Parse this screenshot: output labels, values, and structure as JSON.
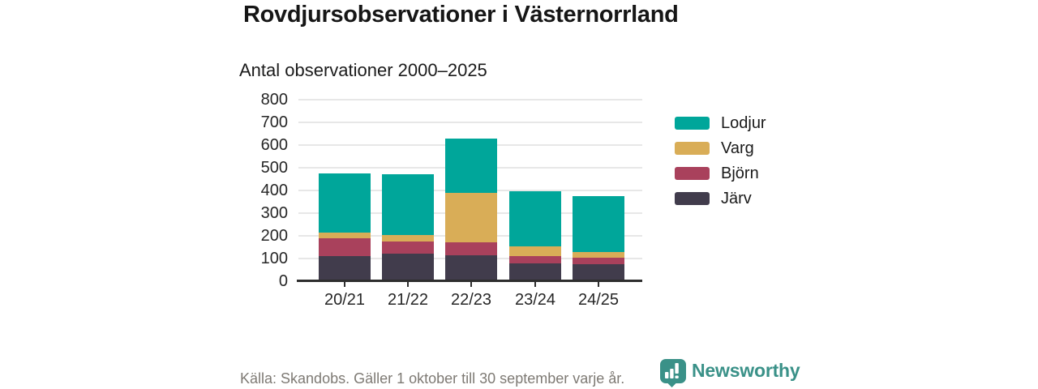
{
  "header": {
    "title": "Rovdjursobservationer i Västernorrland",
    "subtitle": "Antal observationer 2000–2025"
  },
  "chart_data": {
    "type": "bar",
    "stacked": true,
    "title": "Rovdjursobservationer i Västernorrland",
    "subtitle": "Antal observationer 2000–2025",
    "categories": [
      "20/21",
      "21/22",
      "22/23",
      "23/24",
      "24/25"
    ],
    "series": [
      {
        "name": "Järv",
        "color": "#413C4C",
        "values": [
          110,
          120,
          115,
          80,
          75
        ]
      },
      {
        "name": "Björn",
        "color": "#A9415C",
        "values": [
          80,
          55,
          55,
          30,
          30
        ]
      },
      {
        "name": "Varg",
        "color": "#D9AD57",
        "values": [
          25,
          30,
          220,
          45,
          25
        ]
      },
      {
        "name": "Lodjur",
        "color": "#00A69A",
        "values": [
          260,
          265,
          240,
          240,
          245
        ]
      }
    ],
    "stack_order_bottom_to_top": [
      "Järv",
      "Björn",
      "Varg",
      "Lodjur"
    ],
    "legend_order_top_to_bottom": [
      "Lodjur",
      "Varg",
      "Björn",
      "Järv"
    ],
    "totals": [
      475,
      470,
      630,
      395,
      375
    ],
    "ylim": [
      0,
      800
    ],
    "yticks": [
      0,
      100,
      200,
      300,
      400,
      500,
      600,
      700,
      800
    ],
    "grid": true,
    "legend_position": "right",
    "source": "Källa: Skandobs. Gäller 1 oktober till 30 september varje år."
  },
  "footer": {
    "source": "Källa: Skandobs. Gäller 1 oktober till 30 september varje år.",
    "brand": "Newsworthy"
  },
  "colors": {
    "lodjur": "#00A69A",
    "varg": "#D9AD57",
    "bjorn": "#A9415C",
    "jarv": "#413C4C",
    "grid": "#E7E7E7",
    "axis": "#2E2E2E",
    "source_text": "#7E7A74",
    "brand_teal": "#3A9188",
    "background": "#FFFFFF"
  }
}
